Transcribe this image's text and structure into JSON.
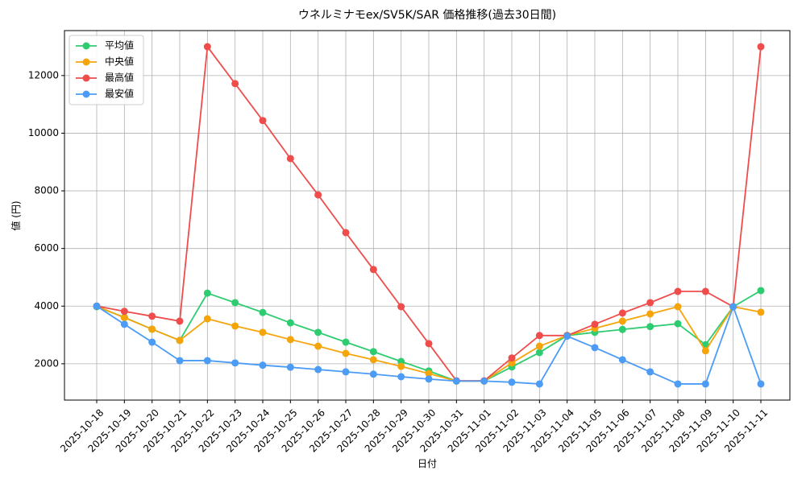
{
  "chart_data": {
    "type": "line",
    "title": "ウネルミナモex/SV5K/SAR 価格推移(過去30日間)",
    "x_label": "日付",
    "y_label": "値 (円)",
    "categories": [
      "2025-10-18",
      "2025-10-19",
      "2025-10-20",
      "2025-10-21",
      "2025-10-22",
      "2025-10-23",
      "2025-10-24",
      "2025-10-25",
      "2025-10-26",
      "2025-10-27",
      "2025-10-28",
      "2025-10-29",
      "2025-10-30",
      "2025-10-31",
      "2025-11-01",
      "2025-11-02",
      "2025-11-03",
      "2025-11-04",
      "2025-11-05",
      "2025-11-06",
      "2025-11-07",
      "2025-11-08",
      "2025-11-09",
      "2025-11-10",
      "2025-11-11"
    ],
    "series": [
      {
        "name": "平均値",
        "color": "#2ecc71",
        "values": [
          3980,
          3610,
          3200,
          2810,
          4450,
          4120,
          3780,
          3420,
          3090,
          2750,
          2420,
          2080,
          1750,
          1400,
          1400,
          1890,
          2390,
          2980,
          3090,
          3190,
          3290,
          3390,
          2660,
          3980,
          4540
        ]
      },
      {
        "name": "中央値",
        "color": "#f5a50a",
        "values": [
          4000,
          3600,
          3200,
          2810,
          3560,
          3310,
          3090,
          2840,
          2610,
          2360,
          2140,
          1910,
          1660,
          1400,
          1400,
          2030,
          2610,
          2980,
          3230,
          3480,
          3730,
          3980,
          2450,
          3980,
          3790
        ]
      },
      {
        "name": "最高値",
        "color": "#ef4c4c",
        "values": [
          4000,
          3820,
          3650,
          3480,
          13000,
          11720,
          10440,
          9120,
          7860,
          6550,
          5270,
          3980,
          2700,
          1410,
          1410,
          2200,
          2980,
          2980,
          3370,
          3760,
          4120,
          4510,
          4510,
          3980,
          13000
        ]
      },
      {
        "name": "最安値",
        "color": "#4c9bf5",
        "values": [
          4000,
          3370,
          2750,
          2110,
          2110,
          2030,
          1950,
          1880,
          1800,
          1720,
          1640,
          1550,
          1470,
          1400,
          1400,
          1360,
          1300,
          2960,
          2560,
          2140,
          1720,
          1300,
          1300,
          3980,
          1300
        ]
      }
    ],
    "ylim": [
      740,
      13560
    ],
    "yticks": [
      2000,
      4000,
      6000,
      8000,
      10000,
      12000
    ],
    "grid": true,
    "legend": "upper-left"
  }
}
